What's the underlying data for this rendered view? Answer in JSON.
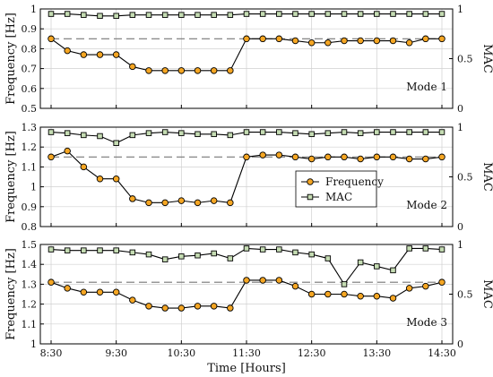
{
  "chart_data": {
    "type": "line",
    "xlabel": "Time [Hours]",
    "x_ticks": [
      "8:30",
      "9:30",
      "10:30",
      "11:30",
      "12:30",
      "13:30",
      "14:30"
    ],
    "x_time_range": [
      "8:30",
      "14:30"
    ],
    "left_axis_label": "Frequency [Hz]",
    "right_axis_label": "MAC",
    "legend": {
      "position": "center-right (middle panel)",
      "entries": [
        "Frequency",
        "MAC"
      ]
    },
    "colors": {
      "frequency_fill": "#f5a623",
      "mac_fill": "#c5dcb3",
      "edge": "#000000",
      "reference_line": "#777777",
      "grid": "#d0d0d0"
    },
    "x": [
      "8:30",
      "8:45",
      "9:00",
      "9:15",
      "9:30",
      "9:45",
      "10:00",
      "10:15",
      "10:30",
      "10:45",
      "11:00",
      "11:15",
      "11:30",
      "11:45",
      "12:00",
      "12:15",
      "12:30",
      "12:45",
      "13:00",
      "13:15",
      "13:30",
      "13:45",
      "14:00",
      "14:15",
      "14:30"
    ],
    "panels": [
      {
        "mode_label": "Mode 1",
        "y_left_ticks": [
          "0.5",
          "0.6",
          "0.7",
          "0.8",
          "0.9",
          "1"
        ],
        "y_left_range": [
          0.5,
          1.0
        ],
        "y_right_ticks": [
          "0",
          "0.5",
          "1"
        ],
        "reference_frequency": 0.85,
        "series": [
          {
            "name": "Frequency",
            "values": [
              0.85,
              0.79,
              0.77,
              0.77,
              0.77,
              0.71,
              0.69,
              0.69,
              0.69,
              0.69,
              0.69,
              0.69,
              0.85,
              0.85,
              0.85,
              0.84,
              0.83,
              0.83,
              0.84,
              0.84,
              0.84,
              0.84,
              0.83,
              0.85,
              0.85
            ]
          },
          {
            "name": "MAC",
            "values": [
              0.95,
              0.95,
              0.94,
              0.93,
              0.93,
              0.94,
              0.94,
              0.94,
              0.94,
              0.94,
              0.94,
              0.94,
              0.95,
              0.95,
              0.95,
              0.95,
              0.95,
              0.95,
              0.95,
              0.95,
              0.95,
              0.95,
              0.95,
              0.95,
              0.95
            ]
          }
        ]
      },
      {
        "mode_label": "Mode 2",
        "y_left_ticks": [
          "0.8",
          "0.9",
          "1",
          "1.1",
          "1.2",
          "1.3"
        ],
        "y_left_range": [
          0.8,
          1.3
        ],
        "y_right_ticks": [
          "0",
          "0.5",
          "1"
        ],
        "reference_frequency": 1.15,
        "series": [
          {
            "name": "Frequency",
            "values": [
              1.15,
              1.18,
              1.1,
              1.04,
              1.04,
              0.94,
              0.92,
              0.92,
              0.93,
              0.92,
              0.93,
              0.92,
              1.15,
              1.16,
              1.16,
              1.15,
              1.14,
              1.15,
              1.15,
              1.14,
              1.15,
              1.15,
              1.14,
              1.14,
              1.15
            ]
          },
          {
            "name": "MAC",
            "values": [
              0.95,
              0.94,
              0.92,
              0.91,
              0.84,
              0.92,
              0.94,
              0.95,
              0.94,
              0.93,
              0.93,
              0.92,
              0.95,
              0.95,
              0.95,
              0.94,
              0.93,
              0.94,
              0.95,
              0.94,
              0.95,
              0.95,
              0.95,
              0.95,
              0.95
            ]
          }
        ]
      },
      {
        "mode_label": "Mode 3",
        "y_left_ticks": [
          "1",
          "1.1",
          "1.2",
          "1.3",
          "1.4",
          "1.5"
        ],
        "y_left_range": [
          1.0,
          1.5
        ],
        "y_right_ticks": [
          "0",
          "0.5",
          "1"
        ],
        "reference_frequency": 1.31,
        "series": [
          {
            "name": "Frequency",
            "values": [
              1.31,
              1.28,
              1.26,
              1.26,
              1.26,
              1.22,
              1.19,
              1.18,
              1.18,
              1.19,
              1.19,
              1.18,
              1.32,
              1.32,
              1.32,
              1.29,
              1.25,
              1.25,
              1.25,
              1.24,
              1.24,
              1.23,
              1.28,
              1.29,
              1.31
            ]
          },
          {
            "name": "MAC",
            "values": [
              0.95,
              0.94,
              0.94,
              0.94,
              0.94,
              0.92,
              0.9,
              0.85,
              0.88,
              0.89,
              0.91,
              0.86,
              0.96,
              0.95,
              0.95,
              0.92,
              0.9,
              0.86,
              0.6,
              0.82,
              0.78,
              0.74,
              0.96,
              0.96,
              0.95
            ]
          }
        ]
      }
    ]
  }
}
